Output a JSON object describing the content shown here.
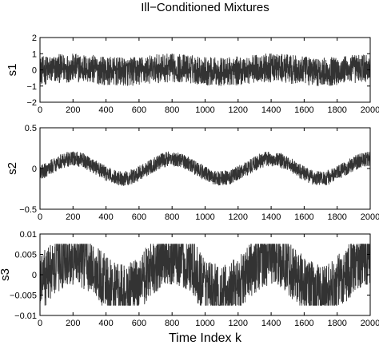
{
  "figure": {
    "title": "Ill−Conditioned Mixtures",
    "xlabel": "Time Index k",
    "trace_color": "#333333"
  },
  "chart_data": [
    {
      "type": "line",
      "ylabel": "s1",
      "xlim": [
        0,
        2000
      ],
      "ylim": [
        -2,
        2
      ],
      "x_ticks": [
        0,
        200,
        400,
        600,
        800,
        1000,
        1200,
        1400,
        1600,
        1800,
        2000
      ],
      "x_tick_labels": [
        "0",
        "200",
        "400",
        "600",
        "800",
        "1000",
        "1200",
        "1400",
        "1600",
        "1800",
        "2000"
      ],
      "y_ticks": [
        -2,
        -1,
        0,
        1,
        2
      ],
      "y_tick_labels": [
        "−2",
        "−1",
        "0",
        "1",
        "2"
      ],
      "series": [
        {
          "n_samples": 2000,
          "trend": {
            "kind": "sine",
            "amplitude": 0.12,
            "period": 600,
            "phase_peak_at": 200,
            "offset": 0.0
          },
          "noise": {
            "kind": "uniform",
            "amplitude": 0.88
          },
          "range": [
            -1.0,
            1.0
          ]
        }
      ]
    },
    {
      "type": "line",
      "ylabel": "s2",
      "xlim": [
        0,
        2000
      ],
      "ylim": [
        -0.5,
        0.5
      ],
      "x_ticks": [
        0,
        200,
        400,
        600,
        800,
        1000,
        1200,
        1400,
        1600,
        1800,
        2000
      ],
      "x_tick_labels": [
        "0",
        "200",
        "400",
        "600",
        "800",
        "1000",
        "1200",
        "1400",
        "1600",
        "1800",
        "2000"
      ],
      "y_ticks": [
        -0.5,
        0,
        0.5
      ],
      "y_tick_labels": [
        "−0.5",
        "0",
        "0.5"
      ],
      "series": [
        {
          "n_samples": 2000,
          "trend": {
            "kind": "sine",
            "amplitude": 0.12,
            "period": 600,
            "phase_peak_at": 200,
            "offset": 0.0
          },
          "noise": {
            "kind": "uniform",
            "amplitude": 0.09
          },
          "range": [
            -0.3,
            0.35
          ]
        }
      ]
    },
    {
      "type": "line",
      "ylabel": "s3",
      "xlim": [
        0,
        2000
      ],
      "ylim": [
        -0.01,
        0.01
      ],
      "x_ticks": [
        0,
        200,
        400,
        600,
        800,
        1000,
        1200,
        1400,
        1600,
        1800,
        2000
      ],
      "x_tick_labels": [
        "0",
        "200",
        "400",
        "600",
        "800",
        "1000",
        "1200",
        "1400",
        "1600",
        "1800",
        "2000"
      ],
      "y_ticks": [
        -0.01,
        -0.005,
        0,
        0.005,
        0.01
      ],
      "y_tick_labels": [
        "−0.01",
        "−0.005",
        "0",
        "0.005",
        "0.01"
      ],
      "series": [
        {
          "n_samples": 2000,
          "trend": {
            "kind": "sine",
            "amplitude": 0.0045,
            "period": 600,
            "phase_peak_at": 200,
            "offset": 0.0
          },
          "noise": {
            "kind": "uniform",
            "amplitude": 0.007
          },
          "range": [
            -0.0075,
            0.0075
          ]
        }
      ]
    }
  ]
}
